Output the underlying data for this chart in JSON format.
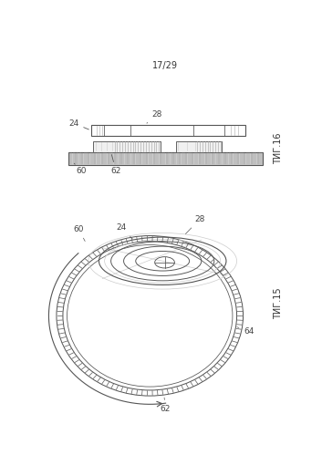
{
  "title": "17/29",
  "fig16_label": "ΤИГ.16",
  "fig15_label": "ΤИГ.15",
  "line_color": "#555555",
  "bg_color": "#ffffff",
  "label_color": "#444444"
}
